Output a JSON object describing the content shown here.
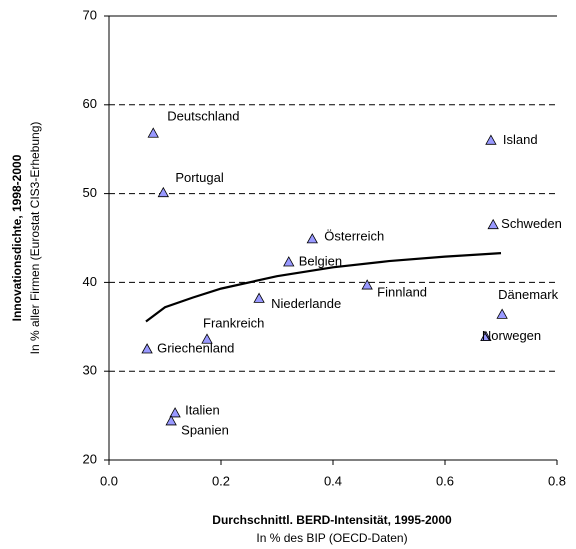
{
  "chart_data": {
    "type": "scatter",
    "x_label": "Durchschnittl. BERD-Intensität, 1995-2000",
    "x_sublabel": "In % des BIP (OECD-Daten)",
    "y_label": "Innovationsdichte, 1998-2000",
    "y_sublabel": "In % aller Firmen (Eurostat CIS3-Erhebung)",
    "xlim": [
      0,
      0.8
    ],
    "ylim": [
      20,
      70
    ],
    "xticks": [
      {
        "value": 0,
        "label": "0.0"
      },
      0.2,
      0.4,
      0.6,
      0.8
    ],
    "yticks": [
      20,
      30,
      40,
      50,
      60,
      70
    ],
    "grid": true,
    "color": "#9999ff",
    "points": [
      {
        "name": "Deutschland",
        "x": 0.079,
        "y": 56.8
      },
      {
        "name": "Portugal",
        "x": 0.097,
        "y": 50.1
      },
      {
        "name": "Island",
        "x": 0.682,
        "y": 56.0
      },
      {
        "name": "Schweden",
        "x": 0.686,
        "y": 46.5
      },
      {
        "name": "Österreich",
        "x": 0.363,
        "y": 44.9
      },
      {
        "name": "Belgien",
        "x": 0.321,
        "y": 42.3
      },
      {
        "name": "Finnland",
        "x": 0.461,
        "y": 39.7
      },
      {
        "name": "Niederlande",
        "x": 0.268,
        "y": 38.2
      },
      {
        "name": "Dänemark",
        "x": 0.702,
        "y": 36.4
      },
      {
        "name": "Norwegen",
        "x": 0.673,
        "y": 33.9
      },
      {
        "name": "Frankreich",
        "x": 0.175,
        "y": 33.6
      },
      {
        "name": "Griechenland",
        "x": 0.068,
        "y": 32.5
      },
      {
        "name": "Italien",
        "x": 0.118,
        "y": 25.3
      },
      {
        "name": "Spanien",
        "x": 0.111,
        "y": 24.4
      }
    ],
    "trend": {
      "x": [
        0.066,
        0.1,
        0.15,
        0.2,
        0.3,
        0.4,
        0.5,
        0.6,
        0.7
      ],
      "y": [
        35.6,
        37.2,
        38.3,
        39.3,
        40.7,
        41.7,
        42.4,
        42.9,
        43.3
      ]
    }
  }
}
